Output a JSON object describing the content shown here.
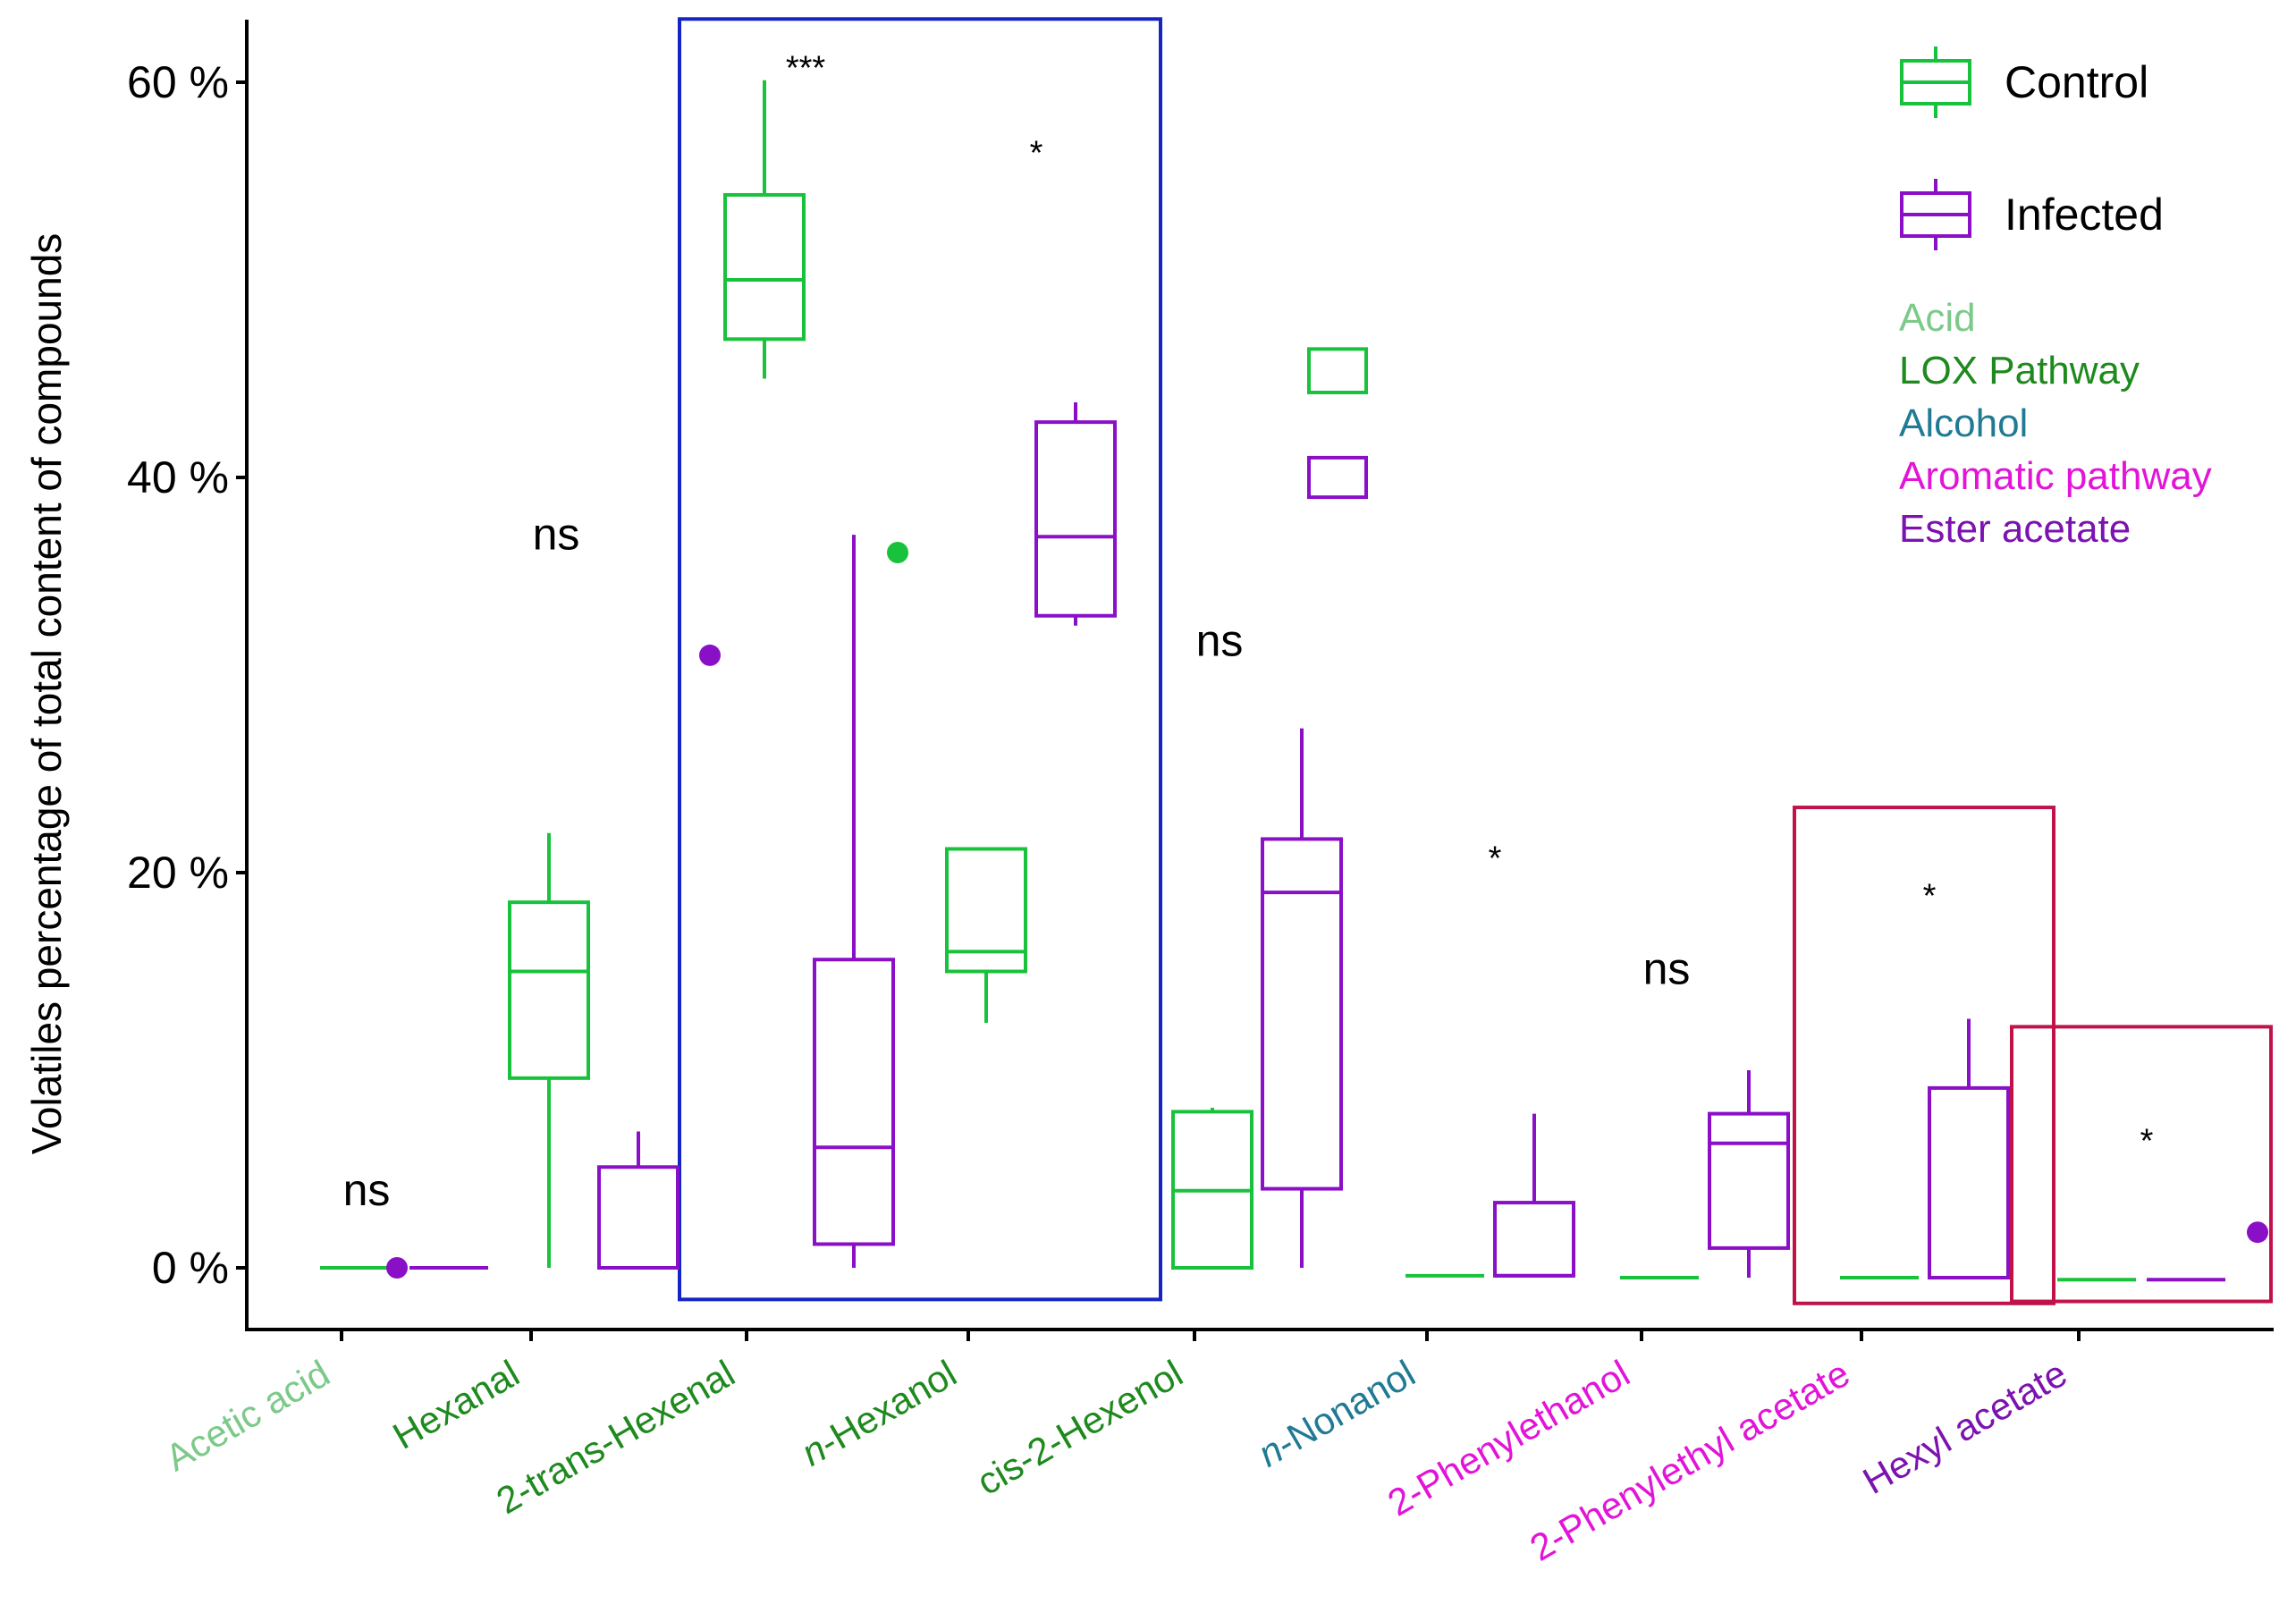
{
  "chart_data": {
    "type": "boxplot",
    "ylabel": "Volatiles percentage of total content of compounds",
    "xlabel": "",
    "ylim": [
      -3,
      63
    ],
    "yticks": [
      {
        "value": 0,
        "label": "0 %"
      },
      {
        "value": 20,
        "label": "20 %"
      },
      {
        "value": 40,
        "label": "40 %"
      },
      {
        "value": 60,
        "label": "60 %"
      }
    ],
    "grid": false,
    "legend_position": "top-right",
    "series": [
      {
        "name": "Control",
        "color": "#19c23c"
      },
      {
        "name": "Infected",
        "color": "#8a10c8"
      }
    ],
    "category_legend": [
      {
        "label": "Acid",
        "color": "#7cc98a"
      },
      {
        "label": "LOX Pathway",
        "color": "#1e8a1e"
      },
      {
        "label": "Alcohol",
        "color": "#207a94"
      },
      {
        "label": "Aromatic pathway",
        "color": "#e214d8"
      },
      {
        "label": "Ester acetate",
        "color": "#7c12b0"
      }
    ],
    "categories": [
      {
        "label": "Acetic acid",
        "label_color": "#7cc98a",
        "italic_prefix": "",
        "significance": "ns",
        "sig_y": 3.8,
        "boxes": [
          {
            "series": "Control",
            "min": 0,
            "q1": 0,
            "median": 0,
            "q3": 0,
            "max": 0,
            "outliers": []
          },
          {
            "series": "Infected",
            "min": 0,
            "q1": 0,
            "median": 0,
            "q3": 0,
            "max": 0,
            "outliers": [
              0
            ]
          }
        ]
      },
      {
        "label": "Hexanal",
        "label_color": "#1e8a1e",
        "italic_prefix": "",
        "significance": "ns",
        "sig_y": 37,
        "boxes": [
          {
            "series": "Control",
            "min": 0,
            "q1": 9.6,
            "median": 15,
            "q3": 18.5,
            "max": 22,
            "outliers": []
          },
          {
            "series": "Infected",
            "min": 0,
            "q1": 0,
            "median": 0,
            "q3": 5.1,
            "max": 6.9,
            "outliers": [
              31
            ]
          }
        ]
      },
      {
        "label": "2-trans-Hexenal",
        "label_color": "#1e8a1e",
        "italic_prefix": "",
        "significance": "***",
        "sig_y": 60.8,
        "boxes": [
          {
            "series": "Control",
            "min": 45,
            "q1": 47,
            "median": 50,
            "q3": 54.3,
            "max": 60.1,
            "outliers": []
          },
          {
            "series": "Infected",
            "min": 0,
            "q1": 1.2,
            "median": 6.1,
            "q3": 15.6,
            "max": 37.1,
            "outliers": []
          }
        ]
      },
      {
        "label": "-Hexanol",
        "label_color": "#1e8a1e",
        "italic_prefix": "n",
        "significance": "*",
        "sig_y": 56.5,
        "boxes": [
          {
            "series": "Control",
            "min": 12.4,
            "q1": 15,
            "median": 16,
            "q3": 21.2,
            "max": 21.2,
            "outliers": [
              36.2
            ]
          },
          {
            "series": "Infected",
            "min": 32.5,
            "q1": 33,
            "median": 37,
            "q3": 42.8,
            "max": 43.8,
            "outliers": []
          }
        ]
      },
      {
        "label": "cis-2-Hexenol",
        "label_color": "#1e8a1e",
        "italic_prefix": "",
        "significance": "ns",
        "sig_y": 31.6,
        "boxes": [
          {
            "series": "Control",
            "min": 0,
            "q1": 0,
            "median": 3.9,
            "q3": 7.9,
            "max": 8.1,
            "outliers": []
          },
          {
            "series": "Infected",
            "min": 0,
            "q1": 4,
            "median": 19,
            "q3": 21.7,
            "max": 27.3,
            "outliers": []
          }
        ]
      },
      {
        "label": "-Nonanol",
        "label_color": "#207a94",
        "italic_prefix": "n",
        "significance": "*",
        "sig_y": 20.8,
        "boxes": [
          {
            "series": "Control",
            "min": -0.4,
            "q1": -0.4,
            "median": -0.4,
            "q3": -0.4,
            "max": -0.4,
            "outliers": []
          },
          {
            "series": "Infected",
            "min": -0.4,
            "q1": -0.4,
            "median": -0.4,
            "q3": 3.3,
            "max": 7.8,
            "outliers": []
          }
        ]
      },
      {
        "label": "2-Phenylethanol",
        "label_color": "#e214d8",
        "italic_prefix": "",
        "significance": "ns",
        "sig_y": 15,
        "boxes": [
          {
            "series": "Control",
            "min": -0.5,
            "q1": -0.5,
            "median": -0.5,
            "q3": -0.5,
            "max": -0.5,
            "outliers": []
          },
          {
            "series": "Infected",
            "min": -0.5,
            "q1": 1,
            "median": 6.3,
            "q3": 7.8,
            "max": 10,
            "outliers": []
          }
        ]
      },
      {
        "label": "2-Phenylethyl acetate",
        "label_color": "#e214d8",
        "italic_prefix": "",
        "significance": "*",
        "sig_y": 18.9,
        "boxes": [
          {
            "series": "Control",
            "min": -0.5,
            "q1": -0.5,
            "median": -0.5,
            "q3": -0.5,
            "max": -0.5,
            "outliers": []
          },
          {
            "series": "Infected",
            "min": -0.5,
            "q1": -0.5,
            "median": -0.5,
            "q3": 9.1,
            "max": 12.6,
            "outliers": []
          }
        ]
      },
      {
        "label": "Hexyl acetate",
        "label_color": "#7c12b0",
        "italic_prefix": "",
        "significance": "*",
        "sig_y": 6.5,
        "boxes": [
          {
            "series": "Control",
            "min": -0.6,
            "q1": -0.6,
            "median": -0.6,
            "q3": -0.6,
            "max": -0.6,
            "outliers": []
          },
          {
            "series": "Infected",
            "min": -0.6,
            "q1": -0.6,
            "median": -0.6,
            "q3": -0.6,
            "max": -0.6,
            "outliers": [
              1.8
            ]
          }
        ]
      }
    ],
    "highlight_boxes": [
      {
        "from_category": 2,
        "to_category": 3,
        "y_top": 63.2,
        "y_bottom": -1.6,
        "color": "#1524c4"
      },
      {
        "from_category": 7,
        "to_category": 7,
        "y_top": 23.3,
        "y_bottom": -1.8,
        "color": "#c0134a"
      },
      {
        "from_category": 8,
        "to_category": 8,
        "y_top": 12.2,
        "y_bottom": -1.7,
        "color": "#c0134a"
      }
    ],
    "extra_boxes": [
      {
        "series": "Control",
        "category": 4,
        "offset": 1,
        "q1": 44.3,
        "median": 44.3,
        "q3": 46.5
      },
      {
        "series": "Infected",
        "category": 4,
        "offset": 1,
        "q1": 39,
        "median": 39,
        "q3": 41
      }
    ]
  }
}
